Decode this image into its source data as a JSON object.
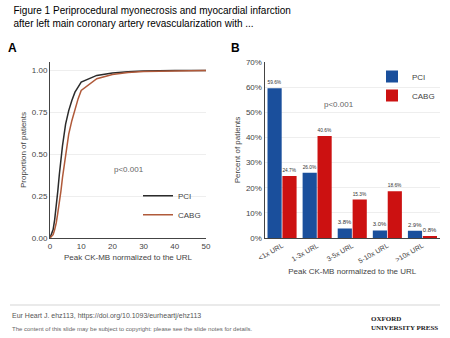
{
  "chart_data": [
    {
      "type": "line",
      "title": "Figure 1 Periprocedural myonecrosis and myocardial infarction\nafter left main coronary artery revascularization with ...",
      "annotations": [
        "A",
        "p<0.001",
        "Eur Heart J. ehz113, https://doi.org/10.1093/eurheartj/ehz113",
        "The content of this slide may be subject to copyright: please see the slide notes for details.",
        "OXFORD\nUNIVERSITY PRESS"
      ],
      "xlabel": "Peak CK-MB normalized to the URL",
      "ylabel": "Proportion of patients",
      "x": [
        0,
        0.5,
        1,
        1.5,
        2,
        2.5,
        3,
        3.5,
        4,
        5,
        6,
        7,
        8,
        9,
        10,
        15,
        20,
        25,
        30,
        40,
        50
      ],
      "series": [
        {
          "name": "PCI",
          "color": "#2b2b2b",
          "values": [
            0.0,
            0.02,
            0.05,
            0.11,
            0.18,
            0.28,
            0.38,
            0.47,
            0.55,
            0.68,
            0.76,
            0.82,
            0.87,
            0.9,
            0.93,
            0.97,
            0.985,
            0.992,
            0.996,
            0.999,
            1.0
          ]
        },
        {
          "name": "CABG",
          "color": "#b05a3a",
          "values": [
            0.0,
            0.01,
            0.02,
            0.05,
            0.09,
            0.15,
            0.21,
            0.28,
            0.36,
            0.5,
            0.62,
            0.7,
            0.77,
            0.83,
            0.88,
            0.95,
            0.975,
            0.988,
            0.994,
            0.998,
            1.0
          ]
        }
      ],
      "xlim": [
        0,
        50
      ],
      "ylim": [
        0,
        1.05
      ],
      "xticks": [
        0,
        10,
        20,
        30,
        40,
        50
      ],
      "yticks": [
        {
          "value": 0,
          "label": "0.00"
        },
        0.25,
        {
          "value": 0.5,
          "label": "0.50"
        },
        0.75,
        {
          "value": 1,
          "label": "1.00"
        }
      ],
      "grid": "y",
      "legend": "lower right"
    },
    {
      "type": "bar",
      "annotations": [
        "B",
        "p<0.001"
      ],
      "xlabel": "Peak CK-MB normalized to the URL",
      "ylabel": "Percent of patients",
      "categories": [
        "<1x URL",
        "1-3x URL",
        "3-5x URL",
        "5-10x URL",
        ">10x URL"
      ],
      "series": [
        {
          "name": "PCI",
          "color": "#1a4f9c",
          "values": [
            59.6,
            26.0,
            3.8,
            3.0,
            2.9
          ],
          "value_labels": [
            "59.6%",
            "26.0%",
            "3.8%",
            "3.0%",
            "2.9%"
          ]
        },
        {
          "name": "CABG",
          "color": "#cc1111",
          "values": [
            24.7,
            40.6,
            15.3,
            18.6,
            0.8
          ],
          "value_labels": [
            "24.7%",
            "40.6%",
            "15.3%",
            "18.6%",
            "0.8%"
          ]
        }
      ],
      "ylim": [
        0,
        70
      ],
      "yticks": [
        {
          "value": 0,
          "label": "0%"
        },
        {
          "value": 10,
          "label": "10%"
        },
        {
          "value": 20,
          "label": "20%"
        },
        {
          "value": 30,
          "label": "30%"
        },
        {
          "value": 40,
          "label": "40%"
        },
        {
          "value": 50,
          "label": "50%"
        },
        {
          "value": 60,
          "label": "60%"
        },
        {
          "value": 70,
          "label": "70%"
        }
      ],
      "grid": "y",
      "legend": "upper right",
      "data_labels": true
    }
  ]
}
